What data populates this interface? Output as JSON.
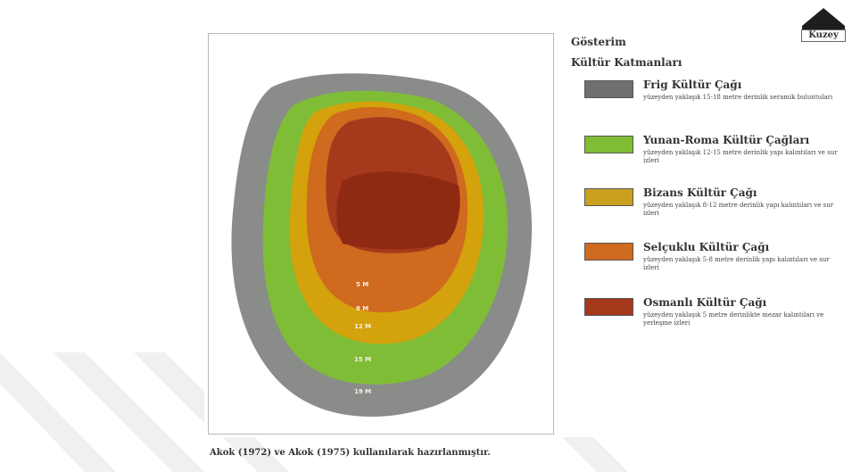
{
  "map": {
    "layers": [
      {
        "name": "frig",
        "color": "#8a8c8a"
      },
      {
        "name": "yunan-roma",
        "color": "#7fbd36"
      },
      {
        "name": "bizans",
        "color": "#d4a20c"
      },
      {
        "name": "selcuklu",
        "color": "#d06a1e"
      },
      {
        "name": "osmanli",
        "color": "#a6391c"
      }
    ],
    "depth_labels": [
      "5 M",
      "8 M",
      "12 M",
      "15 M",
      "19 M"
    ]
  },
  "caption": "Akok (1972) ve Akok (1975) kullanılarak hazırlanmıştır.",
  "legend": {
    "heading": "Gösterim",
    "subheading": "Kültür Katmanları",
    "items": [
      {
        "title": "Frig Kültür Çağı",
        "desc": "yüzeyden yaklaşık 15-18 metre derinlik seramik buluntuları",
        "color": "#6f6f6f"
      },
      {
        "title": "Yunan-Roma Kültür Çağları",
        "desc": "yüzeyden yaklaşık 12-15 metre derinlik yapı kalıntıları ve sur izleri",
        "color": "#7fbd36"
      },
      {
        "title": "Bizans Kültür Çağı",
        "desc": "yüzeyden yaklaşık 8-12 metre derinlik yapı kalıntıları ve sur izleri",
        "color": "#c9a020"
      },
      {
        "title": "Selçuklu Kültür Çağı",
        "desc": "yüzeyden yaklaşık 5-8 metre derinlik yapı kalıntıları ve sur izleri",
        "color": "#d06a1e"
      },
      {
        "title": "Osmanlı Kültür Çağı",
        "desc": "yüzeyden yaklaşık 5 metre derinlikte mezar kalıntıları ve yerleşme izleri",
        "color": "#a6391c"
      }
    ]
  },
  "north": {
    "label": "Kuzey"
  }
}
